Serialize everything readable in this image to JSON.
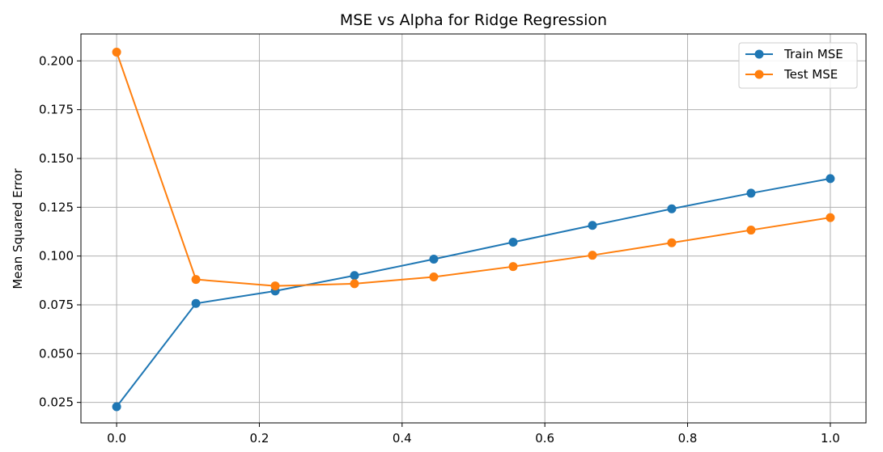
{
  "chart_data": {
    "type": "line",
    "title": "MSE vs Alpha for Ridge Regression",
    "xlabel": "",
    "ylabel": "Mean Squared Error",
    "x": [
      0.0,
      0.1111,
      0.2222,
      0.3333,
      0.4444,
      0.5556,
      0.6667,
      0.7778,
      0.8889,
      1.0
    ],
    "series": [
      {
        "name": "Train MSE",
        "color": "#1f77b4",
        "values": [
          0.0228,
          0.0757,
          0.0821,
          0.09,
          0.0984,
          0.1071,
          0.1157,
          0.1242,
          0.1322,
          0.1397
        ]
      },
      {
        "name": "Test MSE",
        "color": "#ff7f0e",
        "values": [
          0.2045,
          0.088,
          0.0847,
          0.0858,
          0.0893,
          0.0946,
          0.1004,
          0.1068,
          0.1133,
          0.1197
        ]
      }
    ],
    "xlim": [
      -0.05,
      1.05
    ],
    "ylim": [
      0.0145,
      0.2138
    ],
    "xticks": [
      0.0,
      0.2,
      0.4,
      0.6,
      0.8,
      1.0
    ],
    "xtick_labels": [
      "0.0",
      "0.2",
      "0.4",
      "0.6",
      "0.8",
      "1.0"
    ],
    "yticks": [
      0.025,
      0.05,
      0.075,
      0.1,
      0.125,
      0.15,
      0.175,
      0.2
    ],
    "ytick_labels": [
      "0.025",
      "0.050",
      "0.075",
      "0.100",
      "0.125",
      "0.150",
      "0.175",
      "0.200"
    ],
    "grid": true,
    "legend_position": "top-right"
  }
}
